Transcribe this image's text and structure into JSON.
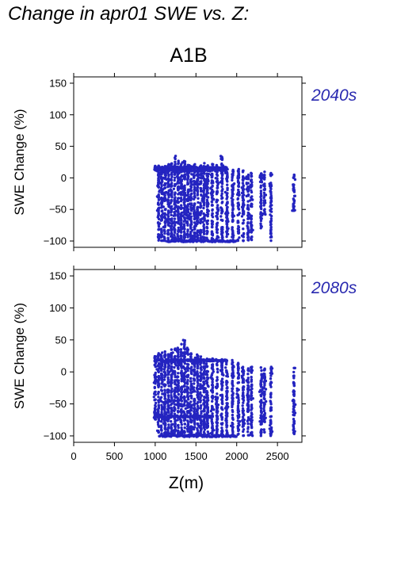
{
  "header": {
    "title": "Change in apr01 SWE vs. Z:"
  },
  "scenario": "A1B",
  "colors": {
    "points": "#2424c0",
    "period_label": "#2a2ab0",
    "axes": "#000000"
  },
  "chart_data": [
    {
      "type": "scatter",
      "title": "2040s",
      "xlabel": "Z(m)",
      "ylabel": "SWE Change (%)",
      "xlim": [
        0,
        2800
      ],
      "ylim": [
        -110,
        160
      ],
      "xticks": [
        0,
        500,
        1000,
        1500,
        2000,
        2500
      ],
      "yticks": [
        -100,
        -50,
        0,
        50,
        100,
        150
      ],
      "x_tick_labels_shown": false,
      "columns": [
        {
          "x": 1000,
          "ymin": 12,
          "ymax": 20
        },
        {
          "x": 1040,
          "ymin": -100,
          "ymax": 20
        },
        {
          "x": 1080,
          "ymin": -100,
          "ymax": 20
        },
        {
          "x": 1120,
          "ymin": -100,
          "ymax": 20
        },
        {
          "x": 1160,
          "ymin": -100,
          "ymax": 22
        },
        {
          "x": 1200,
          "ymin": -100,
          "ymax": 25
        },
        {
          "x": 1240,
          "ymin": -100,
          "ymax": 35
        },
        {
          "x": 1280,
          "ymin": -100,
          "ymax": 28
        },
        {
          "x": 1320,
          "ymin": -100,
          "ymax": 30
        },
        {
          "x": 1360,
          "ymin": -100,
          "ymax": 30
        },
        {
          "x": 1400,
          "ymin": -100,
          "ymax": 25
        },
        {
          "x": 1440,
          "ymin": -100,
          "ymax": 22
        },
        {
          "x": 1480,
          "ymin": -100,
          "ymax": 22
        },
        {
          "x": 1520,
          "ymin": -100,
          "ymax": 20
        },
        {
          "x": 1560,
          "ymin": -100,
          "ymax": 20
        },
        {
          "x": 1600,
          "ymin": -100,
          "ymax": 25
        },
        {
          "x": 1640,
          "ymin": -100,
          "ymax": 20
        },
        {
          "x": 1700,
          "ymin": -100,
          "ymax": 22
        },
        {
          "x": 1760,
          "ymin": -100,
          "ymax": 20
        },
        {
          "x": 1820,
          "ymin": -100,
          "ymax": 35
        },
        {
          "x": 1880,
          "ymin": -100,
          "ymax": 20
        },
        {
          "x": 1950,
          "ymin": -100,
          "ymax": 15
        },
        {
          "x": 2020,
          "ymin": -100,
          "ymax": 15
        },
        {
          "x": 2080,
          "ymin": -100,
          "ymax": 12
        },
        {
          "x": 2140,
          "ymin": -100,
          "ymax": 8
        },
        {
          "x": 2180,
          "ymin": -100,
          "ymax": 8
        },
        {
          "x": 2300,
          "ymin": -80,
          "ymax": 10
        },
        {
          "x": 2340,
          "ymin": -60,
          "ymax": 10
        },
        {
          "x": 2420,
          "ymin": -100,
          "ymax": 8
        },
        {
          "x": 2700,
          "ymin": -55,
          "ymax": 5
        }
      ],
      "bands": [
        {
          "xmin": 1000,
          "xmax": 1880,
          "y": 16
        },
        {
          "xmin": 1000,
          "xmax": 1880,
          "y": 12
        },
        {
          "xmin": 1150,
          "xmax": 2000,
          "y": -100
        }
      ]
    },
    {
      "type": "scatter",
      "title": "2080s",
      "xlabel": "Z(m)",
      "ylabel": "SWE Change (%)",
      "xlim": [
        0,
        2800
      ],
      "ylim": [
        -110,
        160
      ],
      "xticks": [
        0,
        500,
        1000,
        1500,
        2000,
        2500
      ],
      "yticks": [
        -100,
        -50,
        0,
        50,
        100,
        150
      ],
      "x_tick_labels_shown": true,
      "columns": [
        {
          "x": 1000,
          "ymin": -75,
          "ymax": 25
        },
        {
          "x": 1040,
          "ymin": -95,
          "ymax": 30
        },
        {
          "x": 1080,
          "ymin": -100,
          "ymax": 30
        },
        {
          "x": 1120,
          "ymin": -100,
          "ymax": 32
        },
        {
          "x": 1160,
          "ymin": -100,
          "ymax": 30
        },
        {
          "x": 1200,
          "ymin": -100,
          "ymax": 35
        },
        {
          "x": 1240,
          "ymin": -100,
          "ymax": 38
        },
        {
          "x": 1280,
          "ymin": -100,
          "ymax": 40
        },
        {
          "x": 1320,
          "ymin": -100,
          "ymax": 45
        },
        {
          "x": 1360,
          "ymin": -100,
          "ymax": 52
        },
        {
          "x": 1400,
          "ymin": -100,
          "ymax": 38
        },
        {
          "x": 1440,
          "ymin": -100,
          "ymax": 30
        },
        {
          "x": 1480,
          "ymin": -100,
          "ymax": 25
        },
        {
          "x": 1520,
          "ymin": -100,
          "ymax": 28
        },
        {
          "x": 1560,
          "ymin": -100,
          "ymax": 25
        },
        {
          "x": 1600,
          "ymin": -100,
          "ymax": 25
        },
        {
          "x": 1640,
          "ymin": -100,
          "ymax": 22
        },
        {
          "x": 1700,
          "ymin": -100,
          "ymax": 22
        },
        {
          "x": 1760,
          "ymin": -100,
          "ymax": 22
        },
        {
          "x": 1820,
          "ymin": -100,
          "ymax": 22
        },
        {
          "x": 1880,
          "ymin": -100,
          "ymax": 18
        },
        {
          "x": 1950,
          "ymin": -100,
          "ymax": 20
        },
        {
          "x": 2020,
          "ymin": -100,
          "ymax": 15
        },
        {
          "x": 2080,
          "ymin": -100,
          "ymax": 10
        },
        {
          "x": 2140,
          "ymin": -100,
          "ymax": 10
        },
        {
          "x": 2180,
          "ymin": -100,
          "ymax": 8
        },
        {
          "x": 2300,
          "ymin": -100,
          "ymax": 8
        },
        {
          "x": 2340,
          "ymin": -100,
          "ymax": 5
        },
        {
          "x": 2420,
          "ymin": -100,
          "ymax": 8
        },
        {
          "x": 2700,
          "ymin": -100,
          "ymax": 8
        }
      ],
      "bands": [
        {
          "xmin": 1000,
          "xmax": 1880,
          "y": 18
        },
        {
          "xmin": 1000,
          "xmax": 1700,
          "y": -70
        },
        {
          "xmin": 1050,
          "xmax": 2000,
          "y": -100
        }
      ]
    }
  ]
}
